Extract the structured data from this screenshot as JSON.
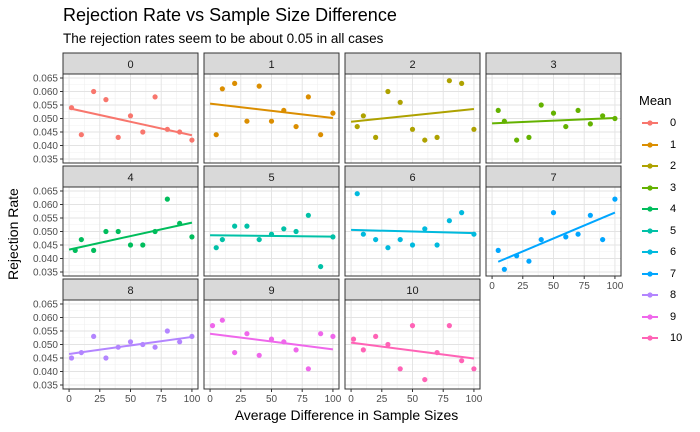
{
  "chart_data": {
    "type": "scatter",
    "title": "Rejection Rate vs Sample Size Difference",
    "subtitle": "The rejection rates seem to be about 0.05 in all cases",
    "xlabel": "Average Difference in Sample Sizes",
    "ylabel": "Rejection Rate",
    "legend_title": "Mean",
    "legend_position": "right",
    "facet_layout": "4 columns x 3 rows",
    "xlim": [
      0,
      100
    ],
    "ylim": [
      0.035,
      0.065
    ],
    "x_ticks": [
      "0",
      "25",
      "50",
      "75",
      "100"
    ],
    "y_ticks": [
      "0.035",
      "0.040",
      "0.045",
      "0.050",
      "0.055",
      "0.060",
      "0.065"
    ],
    "grid": true,
    "trend_line": "linear regression per panel",
    "series": [
      {
        "name": "0",
        "color": "#F8766D",
        "x": [
          2,
          10,
          20,
          30,
          40,
          50,
          60,
          70,
          80,
          90,
          100
        ],
        "y": [
          0.054,
          0.044,
          0.06,
          0.057,
          0.043,
          0.051,
          0.045,
          0.058,
          0.046,
          0.045,
          0.042
        ],
        "fit": [
          [
            0,
            0.0538
          ],
          [
            100,
            0.0438
          ]
        ]
      },
      {
        "name": "1",
        "color": "#DB8E00",
        "x": [
          5,
          10,
          20,
          30,
          40,
          50,
          60,
          70,
          80,
          90,
          100
        ],
        "y": [
          0.044,
          0.061,
          0.063,
          0.049,
          0.062,
          0.049,
          0.053,
          0.047,
          0.058,
          0.044,
          0.052
        ],
        "fit": [
          [
            0,
            0.0555
          ],
          [
            100,
            0.0502
          ]
        ]
      },
      {
        "name": "2",
        "color": "#AEA200",
        "x": [
          5,
          10,
          20,
          30,
          40,
          50,
          60,
          70,
          80,
          90,
          100
        ],
        "y": [
          0.047,
          0.051,
          0.043,
          0.06,
          0.056,
          0.046,
          0.042,
          0.043,
          0.064,
          0.063,
          0.046
        ],
        "fit": [
          [
            0,
            0.0488
          ],
          [
            100,
            0.0535
          ]
        ]
      },
      {
        "name": "3",
        "color": "#64B200",
        "x": [
          5,
          10,
          20,
          30,
          40,
          50,
          60,
          70,
          80,
          90,
          100
        ],
        "y": [
          0.053,
          0.049,
          0.042,
          0.043,
          0.055,
          0.052,
          0.047,
          0.053,
          0.048,
          0.051,
          0.05
        ],
        "fit": [
          [
            0,
            0.0482
          ],
          [
            100,
            0.0502
          ]
        ]
      },
      {
        "name": "4",
        "color": "#00BD5C",
        "x": [
          5,
          10,
          20,
          30,
          40,
          50,
          60,
          70,
          80,
          90,
          100
        ],
        "y": [
          0.043,
          0.047,
          0.043,
          0.05,
          0.05,
          0.045,
          0.045,
          0.05,
          0.062,
          0.053,
          0.048
        ],
        "fit": [
          [
            0,
            0.0433
          ],
          [
            100,
            0.0533
          ]
        ]
      },
      {
        "name": "5",
        "color": "#00C1A7",
        "x": [
          5,
          10,
          20,
          30,
          40,
          50,
          60,
          70,
          80,
          90,
          100
        ],
        "y": [
          0.044,
          0.047,
          0.052,
          0.052,
          0.047,
          0.049,
          0.051,
          0.05,
          0.056,
          0.037,
          0.048
        ],
        "fit": [
          [
            0,
            0.0486
          ],
          [
            100,
            0.0481
          ]
        ]
      },
      {
        "name": "6",
        "color": "#00BADE",
        "x": [
          5,
          10,
          20,
          30,
          40,
          50,
          60,
          70,
          80,
          90,
          100
        ],
        "y": [
          0.064,
          0.049,
          0.047,
          0.044,
          0.047,
          0.045,
          0.051,
          0.045,
          0.054,
          0.057,
          0.049
        ],
        "fit": [
          [
            0,
            0.0506
          ],
          [
            100,
            0.0494
          ]
        ]
      },
      {
        "name": "7",
        "color": "#00A6FF",
        "x": [
          5,
          10,
          20,
          30,
          40,
          50,
          60,
          70,
          80,
          90,
          100
        ],
        "y": [
          0.043,
          0.036,
          0.041,
          0.039,
          0.047,
          0.057,
          0.048,
          0.049,
          0.056,
          0.047,
          0.062
        ],
        "fit": [
          [
            5,
            0.0388
          ],
          [
            100,
            0.057
          ]
        ]
      },
      {
        "name": "8",
        "color": "#B385FF",
        "x": [
          2,
          10,
          20,
          30,
          40,
          50,
          60,
          70,
          80,
          90,
          100
        ],
        "y": [
          0.045,
          0.047,
          0.053,
          0.045,
          0.049,
          0.051,
          0.05,
          0.049,
          0.055,
          0.051,
          0.053
        ],
        "fit": [
          [
            0,
            0.0465
          ],
          [
            100,
            0.0528
          ]
        ]
      },
      {
        "name": "9",
        "color": "#EF67EB",
        "x": [
          2,
          10,
          20,
          30,
          40,
          50,
          60,
          70,
          80,
          90,
          100
        ],
        "y": [
          0.057,
          0.059,
          0.047,
          0.054,
          0.046,
          0.052,
          0.051,
          0.048,
          0.041,
          0.054,
          0.053
        ],
        "fit": [
          [
            0,
            0.054
          ],
          [
            100,
            0.0482
          ]
        ]
      },
      {
        "name": "10",
        "color": "#FF63B6",
        "x": [
          2,
          10,
          20,
          30,
          40,
          50,
          60,
          70,
          80,
          90,
          100
        ],
        "y": [
          0.052,
          0.048,
          0.053,
          0.05,
          0.041,
          0.057,
          0.037,
          0.047,
          0.057,
          0.044,
          0.041
        ],
        "fit": [
          [
            0,
            0.0507
          ],
          [
            100,
            0.0448
          ]
        ]
      }
    ]
  }
}
